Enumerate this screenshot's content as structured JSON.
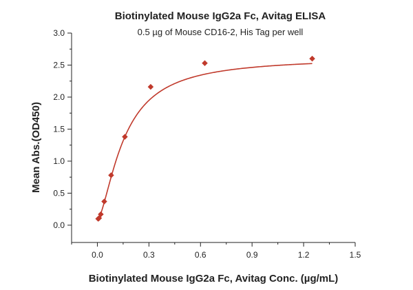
{
  "chart_data": {
    "type": "scatter",
    "title": "Biotinylated Mouse IgG2a Fc, Avitag ELISA",
    "subtitle": "0.5 µg of Mouse CD16-2, His Tag per well",
    "xlabel": "Biotinylated Mouse IgG2a Fc, Avitag Conc. (µg/mL)",
    "ylabel": "Mean Abs.(OD450)",
    "xlim": [
      -0.15,
      1.5
    ],
    "ylim": [
      -0.27,
      3.0
    ],
    "xticks": [
      0.0,
      0.3,
      0.6,
      0.9,
      1.2,
      1.5
    ],
    "yticks": [
      0.0,
      0.5,
      1.0,
      1.5,
      2.0,
      2.5,
      3.0
    ],
    "xtick_labels": [
      "0.0",
      "0.3",
      "0.6",
      "0.9",
      "1.2",
      "1.5"
    ],
    "ytick_labels": [
      "0.0",
      "0.5",
      "1.0",
      "1.5",
      "2.0",
      "2.5",
      "3.0"
    ],
    "grid": false,
    "color": "#c0392b",
    "series": [
      {
        "marker": "diamond",
        "x": [
          0.005,
          0.01,
          0.02,
          0.04,
          0.08,
          0.16,
          0.31,
          0.625,
          1.25
        ],
        "y": [
          0.1,
          0.11,
          0.17,
          0.37,
          0.78,
          1.38,
          2.16,
          2.53,
          2.6
        ]
      }
    ],
    "fit_curve": {
      "model": "four-parameter logistic",
      "bottom": 0.08,
      "top": 2.62,
      "ec50": 0.155,
      "hill": 1.55
    }
  }
}
